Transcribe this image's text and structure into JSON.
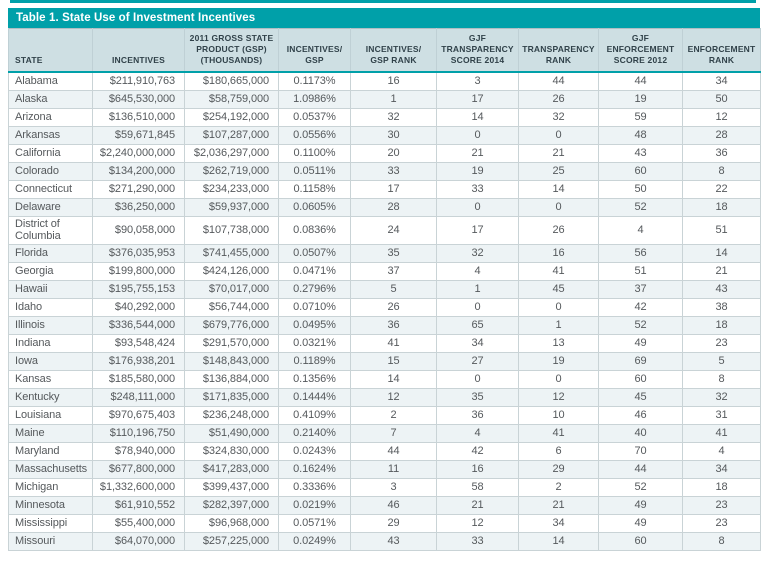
{
  "title": "Table 1. State Use of Investment Incentives",
  "colors": {
    "accent_teal": "#00A0A9",
    "header_background": "#CEDFE3",
    "row_stripe": "#EDF3F5",
    "header_text": "#31424A",
    "body_text": "#55595C"
  },
  "table": {
    "columns": [
      {
        "label": "STATE",
        "align": "left"
      },
      {
        "label": "INCENTIVES",
        "align": "right"
      },
      {
        "label": "2011 GROSS STATE\nPRODUCT (GSP)\n(THOUSANDS)",
        "align": "right"
      },
      {
        "label": "INCENTIVES/\nGSP",
        "align": "center"
      },
      {
        "label": "INCENTIVES/\nGSP RANK",
        "align": "center"
      },
      {
        "label": "GJF\nTRANSPARENCY\nSCORE 2014",
        "align": "center"
      },
      {
        "label": "TRANSPARENCY\nRANK",
        "align": "center"
      },
      {
        "label": "GJF\nENFORCEMENT\nSCORE 2012",
        "align": "center"
      },
      {
        "label": "ENFORCEMENT\nRANK",
        "align": "center"
      }
    ],
    "rows": [
      [
        "Alabama",
        "$211,910,763",
        "$180,665,000",
        "0.1173%",
        "16",
        "3",
        "44",
        "44",
        "34"
      ],
      [
        "Alaska",
        "$645,530,000",
        "$58,759,000",
        "1.0986%",
        "1",
        "17",
        "26",
        "19",
        "50"
      ],
      [
        "Arizona",
        "$136,510,000",
        "$254,192,000",
        "0.0537%",
        "32",
        "14",
        "32",
        "59",
        "12"
      ],
      [
        "Arkansas",
        "$59,671,845",
        "$107,287,000",
        "0.0556%",
        "30",
        "0",
        "0",
        "48",
        "28"
      ],
      [
        "California",
        "$2,240,000,000",
        "$2,036,297,000",
        "0.1100%",
        "20",
        "21",
        "21",
        "43",
        "36"
      ],
      [
        "Colorado",
        "$134,200,000",
        "$262,719,000",
        "0.0511%",
        "33",
        "19",
        "25",
        "60",
        "8"
      ],
      [
        "Connecticut",
        "$271,290,000",
        "$234,233,000",
        "0.1158%",
        "17",
        "33",
        "14",
        "50",
        "22"
      ],
      [
        "Delaware",
        "$36,250,000",
        "$59,937,000",
        "0.0605%",
        "28",
        "0",
        "0",
        "52",
        "18"
      ],
      [
        "District of Columbia",
        "$90,058,000",
        "$107,738,000",
        "0.0836%",
        "24",
        "17",
        "26",
        "4",
        "51"
      ],
      [
        "Florida",
        "$376,035,953",
        "$741,455,000",
        "0.0507%",
        "35",
        "32",
        "16",
        "56",
        "14"
      ],
      [
        "Georgia",
        "$199,800,000",
        "$424,126,000",
        "0.0471%",
        "37",
        "4",
        "41",
        "51",
        "21"
      ],
      [
        "Hawaii",
        "$195,755,153",
        "$70,017,000",
        "0.2796%",
        "5",
        "1",
        "45",
        "37",
        "43"
      ],
      [
        "Idaho",
        "$40,292,000",
        "$56,744,000",
        "0.0710%",
        "26",
        "0",
        "0",
        "42",
        "38"
      ],
      [
        "Illinois",
        "$336,544,000",
        "$679,776,000",
        "0.0495%",
        "36",
        "65",
        "1",
        "52",
        "18"
      ],
      [
        "Indiana",
        "$93,548,424",
        "$291,570,000",
        "0.0321%",
        "41",
        "34",
        "13",
        "49",
        "23"
      ],
      [
        "Iowa",
        "$176,938,201",
        "$148,843,000",
        "0.1189%",
        "15",
        "27",
        "19",
        "69",
        "5"
      ],
      [
        "Kansas",
        "$185,580,000",
        "$136,884,000",
        "0.1356%",
        "14",
        "0",
        "0",
        "60",
        "8"
      ],
      [
        "Kentucky",
        "$248,111,000",
        "$171,835,000",
        "0.1444%",
        "12",
        "35",
        "12",
        "45",
        "32"
      ],
      [
        "Louisiana",
        "$970,675,403",
        "$236,248,000",
        "0.4109%",
        "2",
        "36",
        "10",
        "46",
        "31"
      ],
      [
        "Maine",
        "$110,196,750",
        "$51,490,000",
        "0.2140%",
        "7",
        "4",
        "41",
        "40",
        "41"
      ],
      [
        "Maryland",
        "$78,940,000",
        "$324,830,000",
        "0.0243%",
        "44",
        "42",
        "6",
        "70",
        "4"
      ],
      [
        "Massachusetts",
        "$677,800,000",
        "$417,283,000",
        "0.1624%",
        "11",
        "16",
        "29",
        "44",
        "34"
      ],
      [
        "Michigan",
        "$1,332,600,000",
        "$399,437,000",
        "0.3336%",
        "3",
        "58",
        "2",
        "52",
        "18"
      ],
      [
        "Minnesota",
        "$61,910,552",
        "$282,397,000",
        "0.0219%",
        "46",
        "21",
        "21",
        "49",
        "23"
      ],
      [
        "Mississippi",
        "$55,400,000",
        "$96,968,000",
        "0.0571%",
        "29",
        "12",
        "34",
        "49",
        "23"
      ],
      [
        "Missouri",
        "$64,070,000",
        "$257,225,000",
        "0.0249%",
        "43",
        "33",
        "14",
        "60",
        "8"
      ]
    ]
  }
}
